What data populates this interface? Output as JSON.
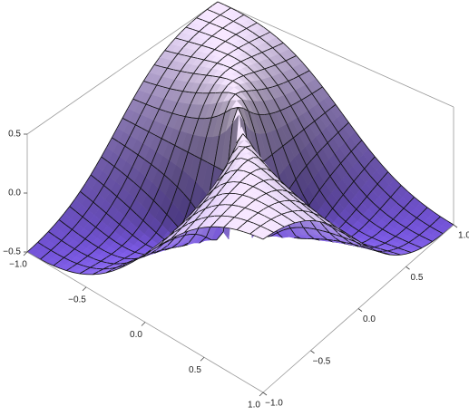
{
  "chart_data": {
    "type": "surface3d",
    "xlim": [
      -1,
      1
    ],
    "ylim": [
      -1,
      1
    ],
    "zlim": [
      -0.5,
      0.5
    ],
    "xticks": [
      {
        "value": -1,
        "label": "−1.0"
      },
      {
        "value": -0.5,
        "label": "−0.5"
      },
      {
        "value": 0,
        "label": "0.0"
      },
      {
        "value": 0.5,
        "label": "0.5"
      },
      {
        "value": 1,
        "label": "1.0"
      }
    ],
    "yticks": [
      {
        "value": -1,
        "label": "−1.0"
      },
      {
        "value": -0.5,
        "label": "−0.5"
      },
      {
        "value": 0,
        "label": "0.0"
      },
      {
        "value": 0.5,
        "label": "0.5"
      },
      {
        "value": 1,
        "label": "1.0"
      }
    ],
    "zticks": [
      {
        "value": -0.5,
        "label": "−0.5"
      },
      {
        "value": 0,
        "label": "0.0"
      },
      {
        "value": 0.5,
        "label": "0.5"
      }
    ]
  }
}
